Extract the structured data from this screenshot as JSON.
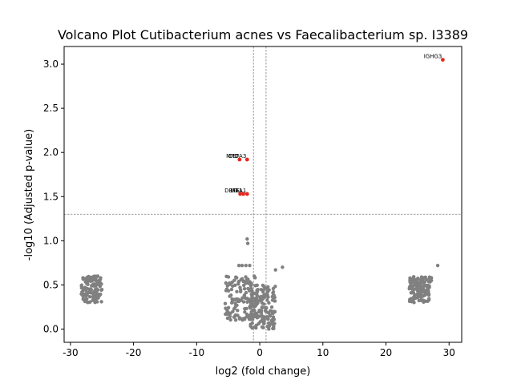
{
  "chart_data": {
    "type": "scatter",
    "title": "Volcano Plot Cutibacterium acnes vs Faecalibacterium sp. I3389",
    "xlabel": "log2 (fold change)",
    "ylabel": "-log10 (Adjusted p-value)",
    "xlim": [
      -31,
      32
    ],
    "ylim": [
      -0.15,
      3.2
    ],
    "xticks": [
      -30,
      -20,
      -10,
      0,
      10,
      20,
      30
    ],
    "yticks": [
      0.0,
      0.5,
      1.0,
      1.5,
      2.0,
      2.5,
      3.0
    ],
    "grid": false,
    "thresholds": {
      "significance_y": 1.3,
      "fold_change_x": [
        -1,
        1
      ]
    },
    "colors": {
      "significant": "#e8281e",
      "not_significant": "#808080",
      "threshold_line": "#808080"
    },
    "significant_points": [
      {
        "label": "IGHG3",
        "x": 29.0,
        "y": 3.05
      },
      {
        "label": "DEFA3",
        "x": -2.0,
        "y": 1.92
      },
      {
        "label": "MPO",
        "x": -3.2,
        "y": 1.92
      },
      {
        "label": "DEFA1",
        "x": -2.6,
        "y": 1.53
      },
      {
        "label": "LTF",
        "x": -3.1,
        "y": 1.53
      },
      {
        "label": "MEA1",
        "x": -2.0,
        "y": 1.53
      }
    ],
    "not_significant_clusters": [
      {
        "x_range": [
          -28.3,
          -25.0
        ],
        "y_range": [
          0.3,
          0.6
        ]
      },
      {
        "x_range": [
          -5.5,
          -0.3
        ],
        "y_range": [
          0.1,
          0.6
        ]
      },
      {
        "x_range": [
          -1.5,
          2.5
        ],
        "y_range": [
          0.0,
          0.5
        ]
      },
      {
        "x_range": [
          23.7,
          27.0
        ],
        "y_range": [
          0.3,
          0.6
        ]
      }
    ],
    "not_significant_extras": [
      {
        "x": -2.0,
        "y": 1.02
      },
      {
        "x": -1.9,
        "y": 0.97
      },
      {
        "x": 3.6,
        "y": 0.7
      },
      {
        "x": 2.5,
        "y": 0.67
      },
      {
        "x": 28.2,
        "y": 0.72
      },
      {
        "x": 27.2,
        "y": 0.58
      },
      {
        "x": 27.2,
        "y": 0.55
      },
      {
        "x": -3.3,
        "y": 0.72
      },
      {
        "x": -2.8,
        "y": 0.72
      },
      {
        "x": -2.2,
        "y": 0.72
      },
      {
        "x": -1.6,
        "y": 0.72
      }
    ]
  }
}
